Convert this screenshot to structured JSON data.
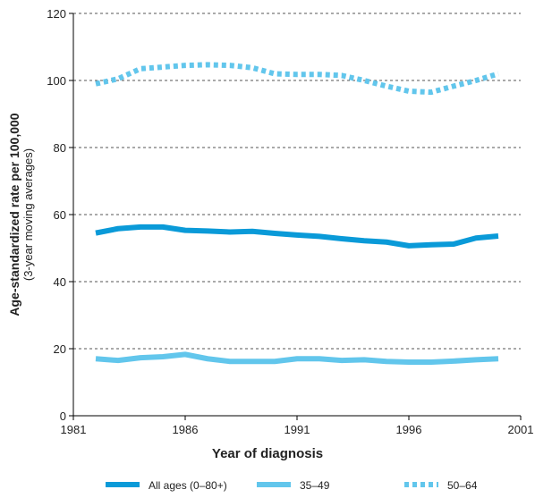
{
  "chart_data": {
    "type": "line",
    "ylabel": "Age-standardized rate per 100,000",
    "ylabel_sub": "(3-year moving averages)",
    "xlabel": "Year of diagnosis",
    "x": [
      1982,
      1983,
      1984,
      1985,
      1986,
      1987,
      1988,
      1989,
      1990,
      1991,
      1992,
      1993,
      1994,
      1995,
      1996,
      1997,
      1998,
      1999,
      2000
    ],
    "series": [
      {
        "name": "All ages (0–80+)",
        "color": "#0a9ad8",
        "style": "solid",
        "values": [
          54.5,
          55.8,
          56.3,
          56.3,
          55.3,
          55.1,
          54.8,
          55,
          54.4,
          53.9,
          53.5,
          52.8,
          52.2,
          51.8,
          50.7,
          51,
          51.2,
          53,
          53.6
        ]
      },
      {
        "name": "35–49",
        "color": "#62c6ec",
        "style": "solid",
        "values": [
          17,
          16.5,
          17.3,
          17.6,
          18.3,
          17,
          16.2,
          16.2,
          16.2,
          17,
          17,
          16.5,
          16.7,
          16.2,
          16,
          16,
          16.3,
          16.7,
          17
        ]
      },
      {
        "name": "50–64",
        "color": "#62c6ec",
        "style": "dotted",
        "values": [
          99,
          100.5,
          103.5,
          104,
          104.5,
          104.7,
          104.5,
          103.8,
          102,
          101.8,
          101.8,
          101.5,
          100,
          98.3,
          96.8,
          96.5,
          98.3,
          100,
          102
        ]
      }
    ],
    "xlim": [
      1981,
      2001
    ],
    "xticks": [
      1981,
      1986,
      1991,
      1996,
      2001
    ],
    "ylim": [
      0,
      120
    ],
    "yticks": [
      0,
      20,
      40,
      60,
      80,
      100,
      120
    ],
    "grid": true,
    "legend": "bottom"
  }
}
